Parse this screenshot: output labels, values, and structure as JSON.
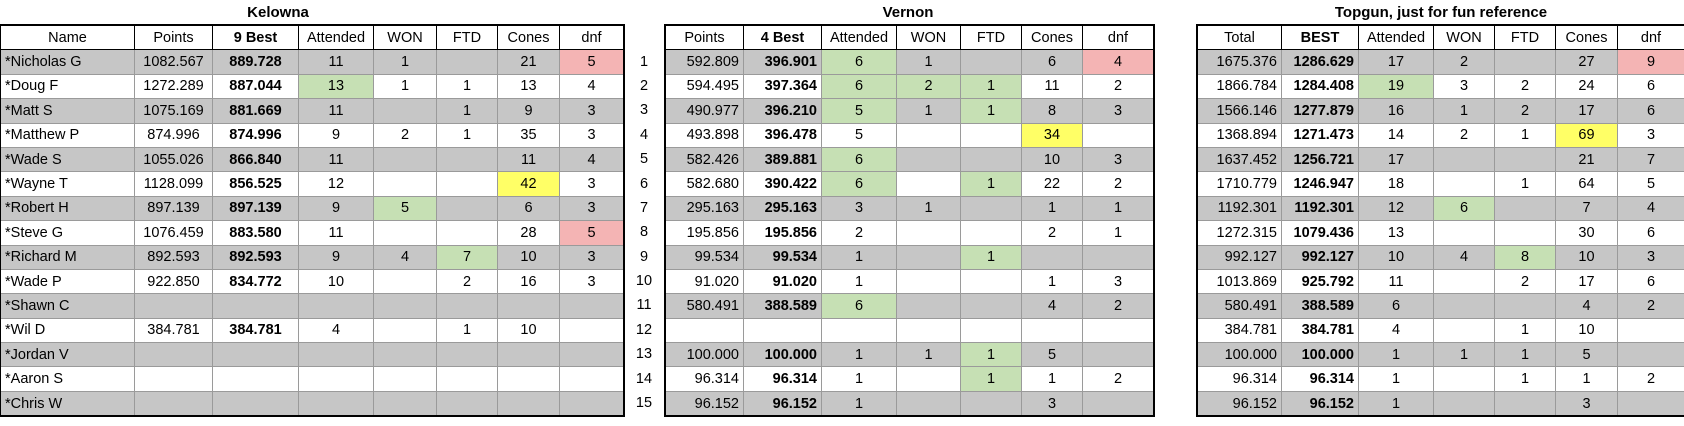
{
  "kelowna": {
    "title": "Kelowna",
    "headers": [
      "Name",
      "Points",
      "9 Best",
      "Attended",
      "WON",
      "FTD",
      "Cones",
      "dnf"
    ],
    "rows": [
      [
        "*Nicholas G",
        "1082.567",
        "889.728",
        "11",
        "1",
        "",
        "21",
        "5"
      ],
      [
        "*Doug  F",
        "1272.289",
        "887.044",
        "13",
        "1",
        "1",
        "13",
        "4"
      ],
      [
        "*Matt S",
        "1075.169",
        "881.669",
        "11",
        "",
        "1",
        "9",
        "3"
      ],
      [
        "*Matthew P",
        "874.996",
        "874.996",
        "9",
        "2",
        "1",
        "35",
        "3"
      ],
      [
        "*Wade S",
        "1055.026",
        "866.840",
        "11",
        "",
        "",
        "11",
        "4"
      ],
      [
        "*Wayne T",
        "1128.099",
        "856.525",
        "12",
        "",
        "",
        "42",
        "3"
      ],
      [
        "*Robert H",
        "897.139",
        "897.139",
        "9",
        "5",
        "",
        "6",
        "3"
      ],
      [
        "*Steve G",
        "1076.459",
        "883.580",
        "11",
        "",
        "",
        "28",
        "5"
      ],
      [
        "*Richard M",
        "892.593",
        "892.593",
        "9",
        "4",
        "7",
        "10",
        "3"
      ],
      [
        "*Wade P",
        "922.850",
        "834.772",
        "10",
        "",
        "2",
        "16",
        "3"
      ],
      [
        "*Shawn C",
        "",
        "",
        "",
        "",
        "",
        "",
        ""
      ],
      [
        "*Wil D",
        "384.781",
        "384.781",
        "4",
        "",
        "1",
        "10",
        ""
      ],
      [
        "*Jordan V",
        "",
        "",
        "",
        "",
        "",
        "",
        ""
      ],
      [
        "*Aaron S",
        "",
        "",
        "",
        "",
        "",
        "",
        ""
      ],
      [
        "*Chris W",
        "",
        "",
        "",
        "",
        "",
        "",
        ""
      ]
    ]
  },
  "ranks": [
    "1",
    "2",
    "3",
    "4",
    "5",
    "6",
    "7",
    "8",
    "9",
    "10",
    "11",
    "12",
    "13",
    "14",
    "15"
  ],
  "vernon": {
    "title": "Vernon",
    "headers": [
      "Points",
      "4 Best",
      "Attended",
      "WON",
      "FTD",
      "Cones",
      "dnf"
    ],
    "rows": [
      [
        "592.809",
        "396.901",
        "6",
        "1",
        "",
        "6",
        "4"
      ],
      [
        "594.495",
        "397.364",
        "6",
        "2",
        "1",
        "11",
        "2"
      ],
      [
        "490.977",
        "396.210",
        "5",
        "1",
        "1",
        "8",
        "3"
      ],
      [
        "493.898",
        "396.478",
        "5",
        "",
        "",
        "34",
        ""
      ],
      [
        "582.426",
        "389.881",
        "6",
        "",
        "",
        "10",
        "3"
      ],
      [
        "582.680",
        "390.422",
        "6",
        "",
        "1",
        "22",
        "2"
      ],
      [
        "295.163",
        "295.163",
        "3",
        "1",
        "",
        "1",
        "1"
      ],
      [
        "195.856",
        "195.856",
        "2",
        "",
        "",
        "2",
        "1"
      ],
      [
        "99.534",
        "99.534",
        "1",
        "",
        "1",
        "",
        ""
      ],
      [
        "91.020",
        "91.020",
        "1",
        "",
        "",
        "1",
        "3"
      ],
      [
        "580.491",
        "388.589",
        "6",
        "",
        "",
        "4",
        "2"
      ],
      [
        "",
        "",
        "",
        "",
        "",
        "",
        ""
      ],
      [
        "100.000",
        "100.000",
        "1",
        "1",
        "1",
        "5",
        ""
      ],
      [
        "96.314",
        "96.314",
        "1",
        "",
        "1",
        "1",
        "2"
      ],
      [
        "96.152",
        "96.152",
        "1",
        "",
        "",
        "3",
        ""
      ]
    ]
  },
  "topgun": {
    "title": "Topgun, just for fun reference",
    "headers": [
      "Total",
      "BEST",
      "Attended",
      "WON",
      "FTD",
      "Cones",
      "dnf"
    ],
    "rows": [
      [
        "1675.376",
        "1286.629",
        "17",
        "2",
        "",
        "27",
        "9"
      ],
      [
        "1866.784",
        "1284.408",
        "19",
        "3",
        "2",
        "24",
        "6"
      ],
      [
        "1566.146",
        "1277.879",
        "16",
        "1",
        "2",
        "17",
        "6"
      ],
      [
        "1368.894",
        "1271.473",
        "14",
        "2",
        "1",
        "69",
        "3"
      ],
      [
        "1637.452",
        "1256.721",
        "17",
        "",
        "",
        "21",
        "7"
      ],
      [
        "1710.779",
        "1246.947",
        "18",
        "",
        "1",
        "64",
        "5"
      ],
      [
        "1192.301",
        "1192.301",
        "12",
        "6",
        "",
        "7",
        "4"
      ],
      [
        "1272.315",
        "1079.436",
        "13",
        "",
        "",
        "30",
        "6"
      ],
      [
        "992.127",
        "992.127",
        "10",
        "4",
        "8",
        "10",
        "3"
      ],
      [
        "1013.869",
        "925.792",
        "11",
        "",
        "2",
        "17",
        "6"
      ],
      [
        "580.491",
        "388.589",
        "6",
        "",
        "",
        "4",
        "2"
      ],
      [
        "384.781",
        "384.781",
        "4",
        "",
        "1",
        "10",
        ""
      ],
      [
        "100.000",
        "100.000",
        "1",
        "1",
        "1",
        "5",
        ""
      ],
      [
        "96.314",
        "96.314",
        "1",
        "",
        "1",
        "1",
        "2"
      ],
      [
        "96.152",
        "96.152",
        "1",
        "",
        "",
        "3",
        ""
      ]
    ]
  },
  "highlight_colors": {
    "green": "#c6e0b4",
    "red": "#f4b4b4",
    "yellow": "#ffff66",
    "gray": "#c6c6c6"
  }
}
